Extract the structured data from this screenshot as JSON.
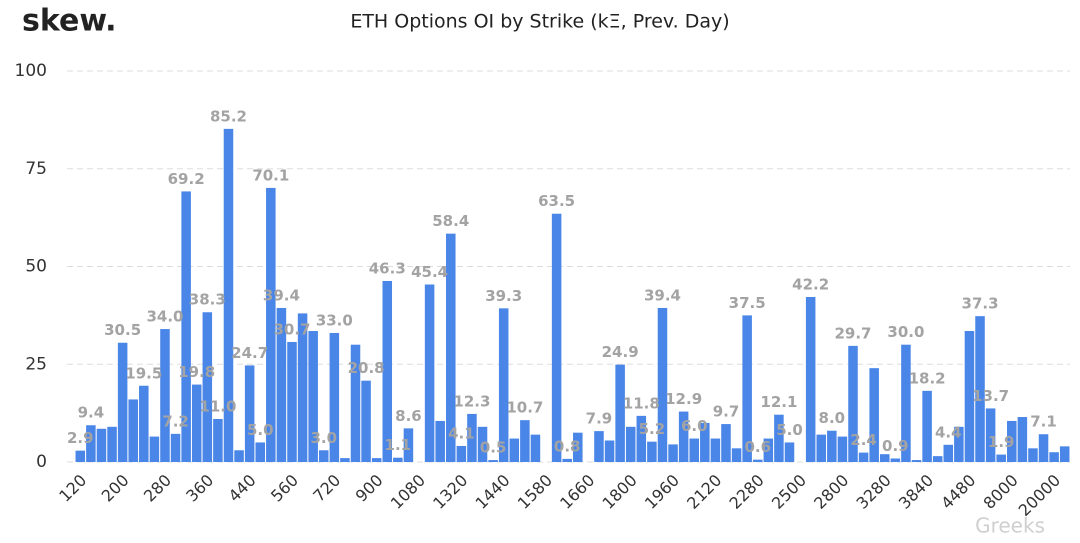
{
  "logo": "skew.",
  "watermark": "Greeks",
  "chart_data": {
    "type": "bar",
    "title": "ETH Options OI by Strike (kΞ, Prev. Day)",
    "color": "#4a86e8",
    "ylim": [
      0,
      100
    ],
    "yticks": [
      0,
      25,
      50,
      75,
      100
    ],
    "grid": true,
    "categories": [
      "120",
      null,
      null,
      null,
      "200",
      null,
      null,
      null,
      "280",
      null,
      null,
      null,
      "360",
      null,
      null,
      null,
      "440",
      null,
      null,
      null,
      "560",
      null,
      null,
      null,
      "720",
      null,
      null,
      null,
      "900",
      null,
      null,
      null,
      "1080",
      null,
      null,
      null,
      "1320",
      null,
      null,
      null,
      "1440",
      null,
      null,
      null,
      "1580",
      null,
      null,
      null,
      "1660",
      null,
      null,
      null,
      "1800",
      null,
      null,
      null,
      "1960",
      null,
      null,
      null,
      "2120",
      null,
      null,
      null,
      "2280",
      null,
      null,
      null,
      "2500",
      null,
      null,
      null,
      "2800",
      null,
      null,
      null,
      "3280",
      null,
      null,
      null,
      "3840",
      null,
      null,
      null,
      "4480",
      null,
      null,
      null,
      "8000",
      null,
      null,
      null,
      "20000",
      null
    ],
    "values": [
      2.9,
      9.4,
      8.5,
      9,
      30.5,
      16,
      19.5,
      6.5,
      34.0,
      7.2,
      69.2,
      19.8,
      38.3,
      11.0,
      85.2,
      3,
      24.7,
      5.0,
      70.1,
      39.4,
      30.7,
      38,
      33.5,
      3.0,
      33.0,
      1,
      30,
      20.8,
      1,
      46.3,
      1.1,
      8.6,
      0,
      45.4,
      10.5,
      58.4,
      4.1,
      12.3,
      9,
      0.5,
      39.3,
      6,
      10.7,
      7,
      0,
      63.5,
      0.8,
      7.5,
      0,
      7.9,
      5.5,
      24.9,
      9,
      11.8,
      5.2,
      39.4,
      4.5,
      12.9,
      6.0,
      10,
      6,
      9.7,
      3.5,
      37.5,
      0.6,
      6,
      12.1,
      5.0,
      0,
      42.2,
      7,
      8.0,
      6.5,
      29.7,
      2.4,
      24,
      2,
      0.9,
      30.0,
      0.5,
      18.2,
      1.5,
      4.4,
      9,
      33.5,
      37.3,
      13.7,
      1.9,
      10.5,
      11.5,
      3.5,
      7.1,
      2.5,
      4
    ],
    "value_labels": [
      "2.9",
      "9.4",
      null,
      null,
      "30.5",
      null,
      "19.5",
      null,
      "34.0",
      "7.2",
      "69.2",
      "19.8",
      "38.3",
      "11.0",
      "85.2",
      null,
      "24.7",
      "5.0",
      "70.1",
      "39.4",
      "30.7",
      null,
      null,
      "3.0",
      "33.0",
      null,
      null,
      "20.8",
      null,
      "46.3",
      "1.1",
      "8.6",
      null,
      "45.4",
      null,
      "58.4",
      "4.1",
      "12.3",
      null,
      "0.5",
      "39.3",
      null,
      "10.7",
      null,
      null,
      "63.5",
      "0.8",
      null,
      null,
      "7.9",
      null,
      "24.9",
      null,
      "11.8",
      "5.2",
      "39.4",
      null,
      "12.9",
      "6.0",
      null,
      null,
      "9.7",
      null,
      "37.5",
      "0.6",
      null,
      "12.1",
      "5.0",
      null,
      "42.2",
      null,
      "8.0",
      null,
      "29.7",
      "2.4",
      null,
      null,
      "0.9",
      "30.0",
      null,
      "18.2",
      null,
      "4.4",
      null,
      null,
      "37.3",
      "13.7",
      "1.9",
      null,
      null,
      null,
      "7.1",
      null,
      null
    ]
  }
}
